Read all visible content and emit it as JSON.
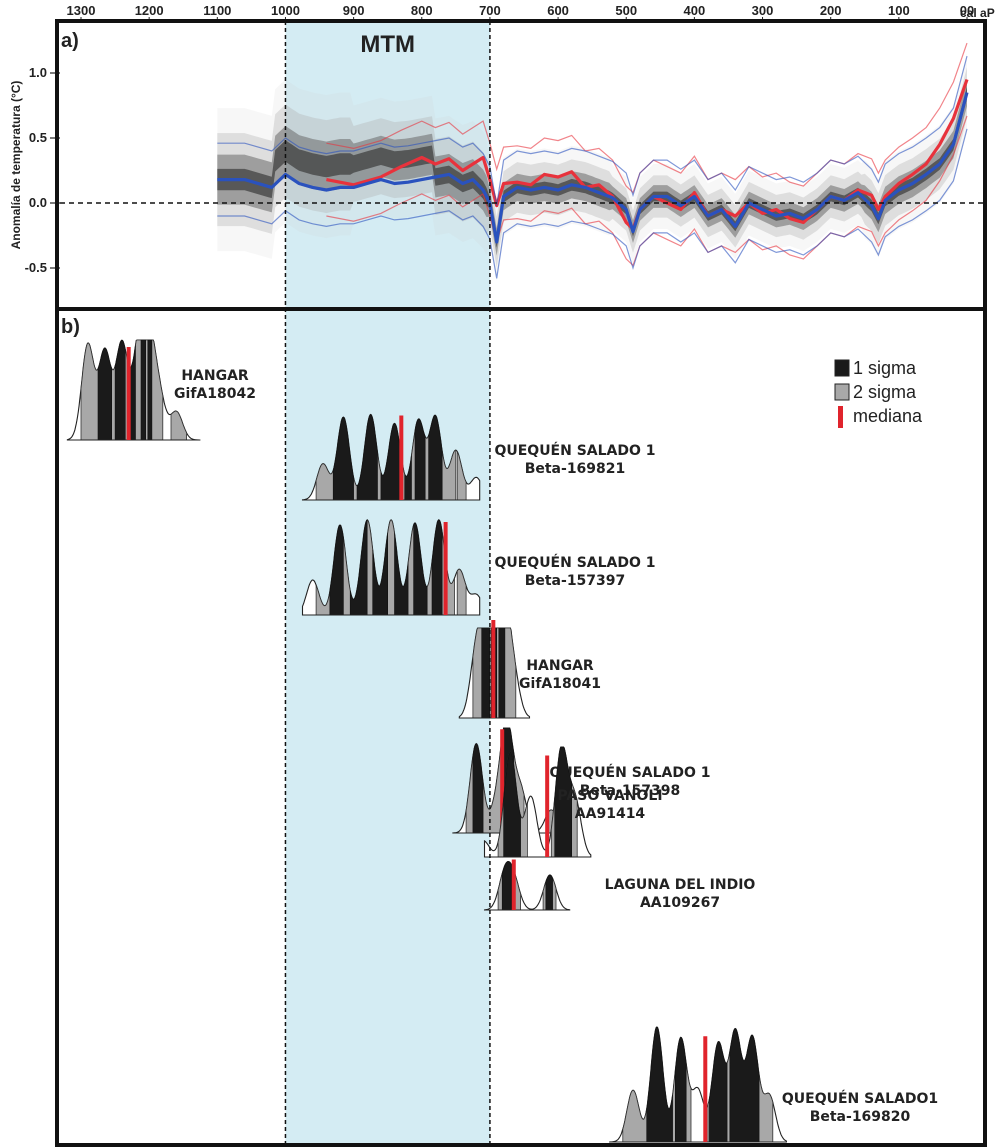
{
  "chart_data": [
    {
      "type": "line",
      "panel_label": "a)",
      "xlabel": "cal aP",
      "ylabel": "Anomalía de temperatura (°C)",
      "x_ticks": [
        "1300",
        "1200",
        "1100",
        "1000",
        "900",
        "800",
        "700",
        "600",
        "500",
        "400",
        "300",
        "200",
        "100",
        "00"
      ],
      "y_ticks": [
        "1.0",
        "0.5",
        "0.0",
        "-0.5"
      ],
      "xlim": [
        1300,
        0
      ],
      "ylim": [
        -0.75,
        1.35
      ],
      "zero_line": true,
      "highlight": {
        "label": "MTM",
        "from": 1000,
        "to": 700
      },
      "series": [
        {
          "color": "#e8323c",
          "x": [
            940,
            900,
            860,
            830,
            800,
            780,
            760,
            740,
            725,
            710,
            700,
            690,
            680,
            660,
            640,
            620,
            600,
            580,
            560,
            540,
            520,
            500,
            490,
            480,
            460,
            440,
            420,
            400,
            380,
            360,
            340,
            320,
            300,
            280,
            260,
            240,
            220,
            200,
            180,
            160,
            140,
            130,
            120,
            100,
            80,
            60,
            40,
            20,
            0
          ],
          "values": [
            0.18,
            0.14,
            0.2,
            0.28,
            0.35,
            0.3,
            0.34,
            0.25,
            0.3,
            0.35,
            0.18,
            -0.02,
            0.15,
            0.16,
            0.14,
            0.22,
            0.2,
            0.24,
            0.12,
            0.14,
            0.05,
            -0.15,
            -0.2,
            -0.05,
            0.05,
            0.0,
            -0.05,
            0.08,
            -0.1,
            -0.05,
            -0.1,
            0.0,
            -0.08,
            -0.05,
            -0.12,
            -0.15,
            -0.05,
            0.05,
            0.02,
            0.1,
            0.06,
            -0.05,
            0.05,
            0.15,
            0.22,
            0.3,
            0.45,
            0.65,
            0.95
          ]
        },
        {
          "color": "#2a52be",
          "x": [
            1100,
            1060,
            1020,
            1000,
            980,
            960,
            940,
            920,
            900,
            880,
            860,
            840,
            820,
            800,
            780,
            760,
            740,
            725,
            710,
            700,
            690,
            680,
            660,
            640,
            620,
            600,
            580,
            560,
            540,
            520,
            500,
            490,
            480,
            460,
            440,
            420,
            400,
            380,
            360,
            340,
            320,
            300,
            280,
            260,
            240,
            220,
            200,
            180,
            160,
            140,
            130,
            120,
            100,
            80,
            60,
            40,
            20,
            0
          ],
          "values": [
            0.18,
            0.18,
            0.12,
            0.22,
            0.15,
            0.12,
            0.1,
            0.12,
            0.12,
            0.15,
            0.18,
            0.15,
            0.16,
            0.18,
            0.2,
            0.22,
            0.15,
            0.18,
            0.1,
            0.0,
            -0.3,
            0.05,
            0.12,
            0.1,
            0.12,
            0.1,
            0.14,
            0.12,
            0.08,
            0.04,
            -0.05,
            -0.22,
            -0.05,
            0.05,
            0.05,
            -0.02,
            0.05,
            -0.1,
            -0.05,
            -0.18,
            0.0,
            -0.05,
            -0.1,
            -0.08,
            -0.12,
            -0.05,
            0.05,
            0.02,
            0.08,
            -0.02,
            -0.12,
            0.02,
            0.1,
            0.15,
            0.22,
            0.3,
            0.45,
            0.85
          ]
        }
      ]
    },
    {
      "type": "probability-distributions",
      "panel_label": "b)",
      "legend": [
        {
          "label": "1 sigma",
          "color": "#1a1a1a"
        },
        {
          "label": "2 sigma",
          "color": "#a8a8a8"
        },
        {
          "label": "mediana",
          "color": "#e0242c"
        }
      ],
      "samples": [
        {
          "site": "HANGAR",
          "lab_code": "GifA18042",
          "median": 1230,
          "peaks": [
            [
              1290,
              0.95
            ],
            [
              1265,
              0.88
            ],
            [
              1240,
              0.96
            ],
            [
              1215,
              0.92
            ],
            [
              1200,
              0.9
            ],
            [
              1185,
              0.4
            ],
            [
              1160,
              0.28
            ]
          ],
          "sigma1": [
            [
              1275,
              1255
            ],
            [
              1250,
              1235
            ],
            [
              1232,
              1220
            ],
            [
              1212,
              1205
            ],
            [
              1202,
              1196
            ]
          ],
          "sigma2": [
            [
              1300,
              1180
            ],
            [
              1168,
              1145
            ]
          ]
        },
        {
          "site": "QUEQUÉN SALADO 1",
          "lab_code": "Beta-169821",
          "median": 830,
          "peaks": [
            [
              945,
              0.4
            ],
            [
              915,
              0.92
            ],
            [
              875,
              0.95
            ],
            [
              840,
              0.85
            ],
            [
              805,
              0.88
            ],
            [
              780,
              0.92
            ],
            [
              750,
              0.55
            ],
            [
              720,
              0.25
            ]
          ],
          "sigma1": [
            [
              930,
              900
            ],
            [
              895,
              865
            ],
            [
              860,
              830
            ],
            [
              825,
              815
            ],
            [
              810,
              795
            ],
            [
              790,
              770
            ]
          ],
          "sigma2": [
            [
              955,
              750
            ],
            [
              748,
              735
            ]
          ]
        },
        {
          "site": "QUEQUÉN SALADO 1",
          "lab_code": "Beta-157397",
          "median": 765,
          "peaks": [
            [
              960,
              0.35
            ],
            [
              920,
              0.9
            ],
            [
              880,
              0.95
            ],
            [
              845,
              0.95
            ],
            [
              810,
              0.92
            ],
            [
              775,
              0.95
            ],
            [
              745,
              0.45
            ],
            [
              720,
              0.2
            ]
          ],
          "sigma1": [
            [
              935,
              915
            ],
            [
              905,
              880
            ],
            [
              872,
              850
            ],
            [
              840,
              820
            ],
            [
              812,
              792
            ],
            [
              785,
              770
            ]
          ],
          "sigma2": [
            [
              955,
              752
            ],
            [
              748,
              735
            ]
          ]
        },
        {
          "site": "HANGAR",
          "lab_code": "GifA18041",
          "median": 695,
          "peaks": [
            [
              720,
              0.7
            ],
            [
              705,
              0.95
            ],
            [
              690,
              1.0
            ],
            [
              678,
              0.9
            ],
            [
              665,
              0.4
            ]
          ],
          "sigma1": [
            [
              712,
              700
            ],
            [
              698,
              690
            ],
            [
              687,
              678
            ]
          ],
          "sigma2": [
            [
              725,
              662
            ]
          ]
        },
        {
          "site": "QUEQUÉN SALADO 1",
          "lab_code": "Beta-157398",
          "median": 682,
          "peaks": [
            [
              720,
              0.85
            ],
            [
              690,
              0.25
            ],
            [
              675,
              1.0
            ],
            [
              655,
              0.4
            ],
            [
              610,
              0.22
            ]
          ],
          "sigma1": [
            [
              725,
              710
            ],
            [
              682,
              665
            ]
          ],
          "sigma2": [
            [
              735,
              650
            ],
            [
              615,
              603
            ]
          ]
        },
        {
          "site": "LAGUNA DEL INDIO",
          "lab_code": "AA109267",
          "median": 665,
          "peaks": [
            [
              678,
              0.7
            ],
            [
              665,
              0.55
            ],
            [
              612,
              0.7
            ]
          ],
          "sigma1": [
            [
              682,
              668
            ],
            [
              618,
              608
            ]
          ],
          "sigma2": [
            [
              688,
              655
            ],
            [
              622,
              603
            ]
          ]
        },
        {
          "site": "PASO VANOLI",
          "lab_code": "AA91414",
          "median": 616,
          "peaks": [
            [
              710,
              0.15
            ],
            [
              670,
              0.95
            ],
            [
              640,
              0.55
            ],
            [
              595,
              0.98
            ],
            [
              575,
              0.5
            ]
          ],
          "sigma1": [
            [
              680,
              655
            ],
            [
              605,
              580
            ]
          ],
          "sigma2": [
            [
              688,
              645
            ],
            [
              610,
              572
            ]
          ]
        },
        {
          "site": "QUEQUÉN SALADO1",
          "lab_code": "Beta-169820",
          "median": 384,
          "peaks": [
            [
              490,
              0.45
            ],
            [
              455,
              1.0
            ],
            [
              420,
              0.9
            ],
            [
              395,
              0.45
            ],
            [
              365,
              0.85
            ],
            [
              340,
              0.95
            ],
            [
              315,
              0.9
            ],
            [
              290,
              0.4
            ]
          ],
          "sigma1": [
            [
              470,
              432
            ],
            [
              428,
              412
            ],
            [
              378,
              352
            ],
            [
              348,
              305
            ]
          ],
          "sigma2": [
            [
              505,
              405
            ],
            [
              380,
              285
            ]
          ]
        }
      ]
    }
  ]
}
